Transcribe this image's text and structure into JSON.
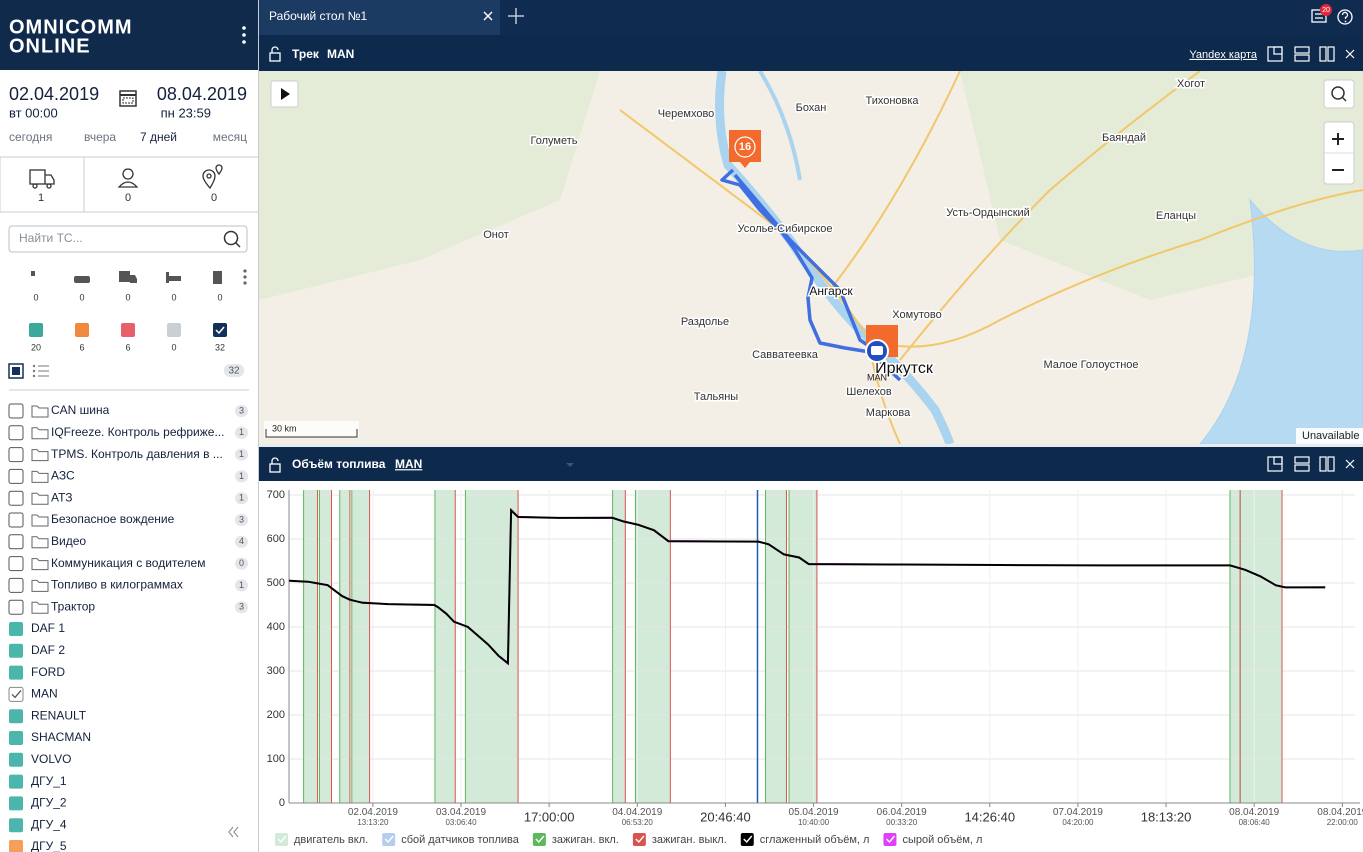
{
  "sidebar": {
    "logo": [
      "OMNICOMM",
      "ONLINE"
    ],
    "date_from": "02.04.2019",
    "time_from": "вт 00:00",
    "date_to": "08.04.2019",
    "time_to": "пн 23:59",
    "ranges": [
      "сегодня",
      "вчера",
      "7 дней",
      "месяц"
    ],
    "tab_counts": [
      1,
      0,
      0
    ],
    "search_placeholder": "Найти ТС...",
    "status_counts": [
      0,
      0,
      0,
      0,
      0
    ],
    "color_filters": [
      {
        "color": "#3aa99b",
        "count": 20
      },
      {
        "color": "#f0883e",
        "count": 6
      },
      {
        "color": "#e5606a",
        "count": 6
      },
      {
        "color": "#c9d0d5",
        "count": 0
      },
      {
        "color": "#14305a",
        "count": 32
      }
    ],
    "list_count": 32,
    "groups": [
      {
        "name": "CAN шина",
        "count": 3
      },
      {
        "name": "IQFreeze. Контроль рефриже...",
        "count": 1
      },
      {
        "name": "TPMS. Контроль давления в ...",
        "count": 1
      },
      {
        "name": "АЗС",
        "count": 1
      },
      {
        "name": "АТЗ",
        "count": 1
      },
      {
        "name": "Безопасное вождение",
        "count": 3
      },
      {
        "name": "Видео",
        "count": 4
      },
      {
        "name": "Коммуникация с водителем",
        "count": 0
      },
      {
        "name": "Топливо в килограммах",
        "count": 1
      },
      {
        "name": "Трактор",
        "count": 3
      }
    ],
    "vehicles": [
      {
        "name": "DAF 1",
        "color": "#4db6ac"
      },
      {
        "name": "DAF 2",
        "color": "#4db6ac"
      },
      {
        "name": "FORD",
        "color": "#4db6ac"
      },
      {
        "name": "MAN",
        "color": "#4db6ac",
        "checked": true
      },
      {
        "name": "RENAULT",
        "color": "#4db6ac"
      },
      {
        "name": "SHACMAN",
        "color": "#4db6ac"
      },
      {
        "name": "VOLVO",
        "color": "#4db6ac"
      },
      {
        "name": "ДГУ_1",
        "color": "#4db6ac"
      },
      {
        "name": "ДГУ_2",
        "color": "#4db6ac"
      },
      {
        "name": "ДГУ_4",
        "color": "#4db6ac"
      },
      {
        "name": "ДГУ_5",
        "color": "#f5a05a"
      }
    ]
  },
  "topbar": {
    "tab": "Рабочий стол №1",
    "notifications": 20
  },
  "map_panel": {
    "title": "Трек",
    "object": "MAN",
    "map_source": "Yandex карта",
    "places": [
      "Черемхово",
      "Бохан",
      "Тихоновка",
      "Хогот",
      "Голуметь",
      "Баяндай",
      "Усть-Ордынский",
      "Еланцы",
      "Онот",
      "Усолье-Сибирское",
      "Ангарск",
      "Хомутово",
      "Раздолье",
      "Савватеевка",
      "Малое Голоустное",
      "Иркутск",
      "Шелехов",
      "Маркова",
      "Тальяны"
    ],
    "marker": 16,
    "vehicle": "MAN",
    "scale": "30 km",
    "status": "Unavailable"
  },
  "fuel_panel": {
    "title": "Объём топлива",
    "object": "MAN",
    "chart_data": {
      "type": "line",
      "xlim": [
        0,
        168
      ],
      "ylim": [
        0,
        700
      ],
      "yticks": [
        0,
        100,
        200,
        300,
        400,
        500,
        600,
        700
      ],
      "grid": true,
      "xticks": [
        {
          "value": 13.22,
          "label": "02.04.2019 13:13:20"
        },
        {
          "value": 27.11,
          "label": "03.04.2019 03:06:40"
        },
        {
          "value": 41,
          "label": "17:00:00"
        },
        {
          "value": 54.89,
          "label": "04.04.2019 06:53:20"
        },
        {
          "value": 68.78,
          "label": "20:46:40"
        },
        {
          "value": 82.67,
          "label": "05.04.2019 10:40:00"
        },
        {
          "value": 96.56,
          "label": "06.04.2019 00:33:20"
        },
        {
          "value": 110.44,
          "label": "14:26:40"
        },
        {
          "value": 124.33,
          "label": "07.04.2019 04:20:00"
        },
        {
          "value": 138.22,
          "label": "18:13:20"
        },
        {
          "value": 152.11,
          "label": "08.04.2019 08:06:40"
        },
        {
          "value": 166,
          "label": "08.04.2019 22:00:00"
        }
      ],
      "engine_on": {
        "name": "двигатель вкл.",
        "color": "#d3ead8",
        "ranges": [
          [
            2.3,
            4.5
          ],
          [
            4.8,
            6.7
          ],
          [
            8.0,
            9.6
          ],
          [
            9.9,
            12.7
          ],
          [
            23.0,
            26.2
          ],
          [
            27.8,
            36.1
          ],
          [
            51.0,
            53.0
          ],
          [
            54.6,
            60.1
          ],
          [
            75.1,
            78.4
          ],
          [
            78.8,
            83.2
          ],
          [
            148.3,
            149.9
          ],
          [
            149.9,
            156.5
          ]
        ]
      },
      "sensor_fault": {
        "name": "сбой датчиков топлива",
        "color": "#b7cdf0",
        "ranges": []
      },
      "ignition_on": {
        "name": "зажиган. вкл.",
        "color": "#5cb85c",
        "x": [
          2.3,
          4.8,
          8.0,
          9.9,
          23.0,
          27.8,
          51.0,
          54.6,
          75.1,
          78.8,
          148.3,
          149.9
        ]
      },
      "ignition_off": {
        "name": "зажиган. выкл.",
        "color": "#d9534f",
        "x": [
          4.5,
          6.7,
          9.6,
          12.7,
          26.2,
          36.1,
          53.0,
          60.1,
          78.4,
          83.2,
          149.9,
          156.5
        ]
      },
      "x": [
        0,
        3.0,
        4.2,
        6.1,
        7.3,
        8.4,
        9.6,
        11.6,
        15.6,
        22.9,
        23.5,
        24.8,
        26.0,
        28.2,
        29.8,
        31.4,
        33.0,
        34.5,
        35.0,
        36.1,
        42.4,
        51.0,
        52.7,
        55.1,
        57.5,
        59.8,
        74.0,
        75.6,
        78.0,
        80.4,
        81.9,
        96.2,
        112.0,
        127.8,
        148.3,
        150.7,
        153.1,
        155.5,
        157.0,
        163.3
      ],
      "series": [
        {
          "name": "сглаженный объём, л",
          "color": "#000000",
          "values": [
            505,
            503,
            500,
            495,
            482,
            470,
            462,
            455,
            452,
            450,
            445,
            430,
            412,
            400,
            380,
            360,
            335,
            318,
            665,
            650,
            648,
            648,
            640,
            632,
            620,
            595,
            594,
            588,
            565,
            558,
            543,
            542,
            541,
            540,
            540,
            530,
            515,
            495,
            490,
            490
          ]
        },
        {
          "name": "сырой объём, л",
          "color": "#e040fb",
          "values": [
            506,
            503,
            499,
            496,
            481,
            471,
            461,
            456,
            452,
            451,
            444,
            431,
            411,
            401,
            379,
            361,
            334,
            316,
            667,
            651,
            648,
            649,
            639,
            633,
            619,
            596,
            594,
            587,
            566,
            557,
            544,
            542,
            541,
            540,
            540,
            529,
            516,
            494,
            490,
            491
          ]
        }
      ]
    }
  }
}
